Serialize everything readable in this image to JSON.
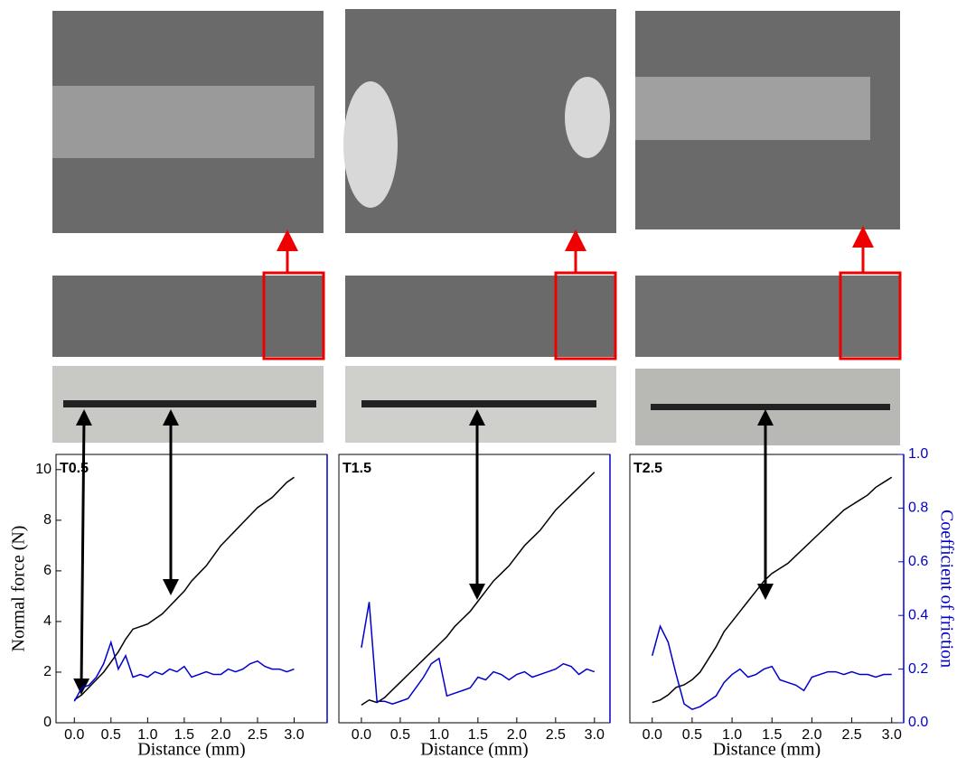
{
  "chart_data": [
    {
      "type": "line",
      "title": "T0.5",
      "x_label": "Distance (mm)",
      "y_label": "Normal force (N)",
      "x": [
        0,
        0.1,
        0.2,
        0.3,
        0.4,
        0.5,
        0.6,
        0.7,
        0.8,
        0.9,
        1.0,
        1.1,
        1.2,
        1.3,
        1.4,
        1.5,
        1.6,
        1.7,
        1.8,
        1.9,
        2.0,
        2.1,
        2.2,
        2.3,
        2.4,
        2.5,
        2.6,
        2.7,
        2.8,
        2.9,
        3.0
      ],
      "series": [
        {
          "color": "#000000",
          "values": [
            0.9,
            1.1,
            1.4,
            1.7,
            2.0,
            2.4,
            2.8,
            3.3,
            3.7,
            3.8,
            3.9,
            4.1,
            4.3,
            4.6,
            4.9,
            5.2,
            5.6,
            5.9,
            6.2,
            6.6,
            7.0,
            7.3,
            7.6,
            7.9,
            8.2,
            8.5,
            8.7,
            8.9,
            9.2,
            9.5,
            9.7
          ]
        },
        {
          "color": "#0000cc",
          "axis": "y2",
          "values": [
            0.08,
            0.13,
            0.14,
            0.17,
            0.22,
            0.3,
            0.2,
            0.25,
            0.17,
            0.18,
            0.17,
            0.19,
            0.18,
            0.2,
            0.19,
            0.21,
            0.17,
            0.18,
            0.19,
            0.18,
            0.18,
            0.2,
            0.19,
            0.2,
            0.22,
            0.23,
            0.21,
            0.2,
            0.2,
            0.19,
            0.2
          ]
        }
      ],
      "xlim": [
        -0.25,
        3.45
      ],
      "ylim": [
        0,
        10.6
      ],
      "y2lim": [
        0,
        1.0
      ],
      "xticks": [
        {
          "value": 0,
          "label": "0.0"
        },
        {
          "value": 0.5,
          "label": "0.5"
        },
        {
          "value": 1,
          "label": "1.0"
        },
        {
          "value": 1.5,
          "label": "1.5"
        },
        {
          "value": 2,
          "label": "2.0"
        },
        {
          "value": 2.5,
          "label": "2.5"
        },
        {
          "value": 3,
          "label": "3.0"
        }
      ],
      "yticks": [
        0,
        2,
        4,
        6,
        8,
        10
      ]
    },
    {
      "type": "line",
      "title": "T1.5",
      "x_label": "Distance (mm)",
      "x": [
        0,
        0.1,
        0.2,
        0.3,
        0.4,
        0.5,
        0.6,
        0.7,
        0.8,
        0.9,
        1.0,
        1.1,
        1.2,
        1.3,
        1.4,
        1.5,
        1.6,
        1.7,
        1.8,
        1.9,
        2.0,
        2.1,
        2.2,
        2.3,
        2.4,
        2.5,
        2.6,
        2.7,
        2.8,
        2.9,
        3.0
      ],
      "series": [
        {
          "color": "#000000",
          "values": [
            0.7,
            0.9,
            0.8,
            1.0,
            1.3,
            1.6,
            1.9,
            2.2,
            2.5,
            2.8,
            3.1,
            3.4,
            3.8,
            4.1,
            4.4,
            4.8,
            5.2,
            5.6,
            5.9,
            6.2,
            6.6,
            7.0,
            7.3,
            7.6,
            8.0,
            8.4,
            8.7,
            9.0,
            9.3,
            9.6,
            9.9
          ]
        },
        {
          "color": "#0000cc",
          "axis": "y2",
          "values": [
            0.28,
            0.45,
            0.08,
            0.08,
            0.07,
            0.08,
            0.09,
            0.13,
            0.17,
            0.22,
            0.24,
            0.1,
            0.11,
            0.12,
            0.13,
            0.17,
            0.16,
            0.19,
            0.18,
            0.16,
            0.18,
            0.19,
            0.17,
            0.18,
            0.19,
            0.2,
            0.22,
            0.21,
            0.18,
            0.2,
            0.19
          ]
        }
      ],
      "xlim": [
        -0.29,
        3.2
      ],
      "ylim": [
        0,
        10.6
      ],
      "y2lim": [
        0,
        1.0
      ],
      "xticks": [
        {
          "value": 0,
          "label": "0.0"
        },
        {
          "value": 0.5,
          "label": "0.5"
        },
        {
          "value": 1,
          "label": "1.0"
        },
        {
          "value": 1.5,
          "label": "1.5"
        },
        {
          "value": 2,
          "label": "2.0"
        },
        {
          "value": 2.5,
          "label": "2.5"
        },
        {
          "value": 3,
          "label": "3.0"
        }
      ]
    },
    {
      "type": "line",
      "title": "T2.5",
      "x_label": "Distance (mm)",
      "y2_label": "Coefficient of friction",
      "x": [
        0,
        0.1,
        0.2,
        0.3,
        0.4,
        0.5,
        0.6,
        0.7,
        0.8,
        0.9,
        1.0,
        1.1,
        1.2,
        1.3,
        1.4,
        1.5,
        1.6,
        1.7,
        1.8,
        1.9,
        2.0,
        2.1,
        2.2,
        2.3,
        2.4,
        2.5,
        2.6,
        2.7,
        2.8,
        2.9,
        3.0
      ],
      "series": [
        {
          "color": "#000000",
          "values": [
            0.8,
            0.9,
            1.1,
            1.4,
            1.5,
            1.7,
            2.0,
            2.5,
            3.0,
            3.6,
            4.0,
            4.4,
            4.8,
            5.2,
            5.6,
            5.9,
            6.1,
            6.3,
            6.6,
            6.9,
            7.2,
            7.5,
            7.8,
            8.1,
            8.4,
            8.6,
            8.8,
            9.0,
            9.3,
            9.5,
            9.7
          ]
        },
        {
          "color": "#0000cc",
          "axis": "y2",
          "values": [
            0.25,
            0.36,
            0.3,
            0.18,
            0.07,
            0.05,
            0.06,
            0.08,
            0.1,
            0.15,
            0.18,
            0.2,
            0.17,
            0.18,
            0.2,
            0.21,
            0.16,
            0.15,
            0.14,
            0.12,
            0.17,
            0.18,
            0.19,
            0.19,
            0.18,
            0.19,
            0.18,
            0.18,
            0.17,
            0.18,
            0.18
          ]
        }
      ],
      "xlim": [
        -0.28,
        3.15
      ],
      "ylim": [
        0,
        10.6
      ],
      "y2lim": [
        0,
        1.0
      ],
      "xticks": [
        {
          "value": 0,
          "label": "0.0"
        },
        {
          "value": 0.5,
          "label": "0.5"
        },
        {
          "value": 1,
          "label": "1.0"
        },
        {
          "value": 1.5,
          "label": "1.5"
        },
        {
          "value": 2,
          "label": "2.0"
        },
        {
          "value": 2.5,
          "label": "2.5"
        },
        {
          "value": 3,
          "label": "3.0"
        }
      ],
      "y2ticks": [
        {
          "value": 0,
          "label": "0.0"
        },
        {
          "value": 0.2,
          "label": "0.2"
        },
        {
          "value": 0.4,
          "label": "0.4"
        },
        {
          "value": 0.6,
          "label": "0.6"
        },
        {
          "value": 0.8,
          "label": "0.8"
        },
        {
          "value": 1.0,
          "label": "1.0"
        }
      ]
    }
  ]
}
